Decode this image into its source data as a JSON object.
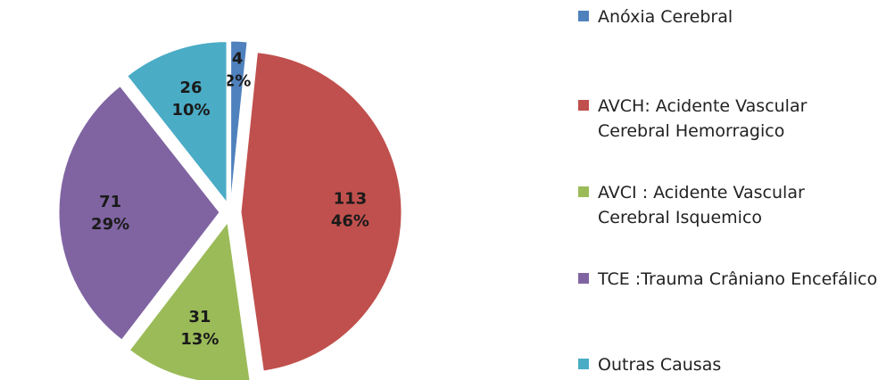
{
  "chart_data": {
    "type": "pie",
    "categories": [
      "Anóxia Cerebral",
      "AVCH: Acidente Vascular Cerebral Hemorragico",
      "AVCI : Acidente Vascular Cerebral Isquemico",
      "TCE :Trauma Crâniano Encefálico",
      "Outras Causas"
    ],
    "values": [
      4,
      113,
      31,
      71,
      26
    ],
    "percent_labels": [
      "2%",
      "46%",
      "13%",
      "29%",
      "10%"
    ],
    "colors": [
      "#4f81bd",
      "#c0504d",
      "#9bbb59",
      "#8064a2",
      "#4bacc6"
    ],
    "legend": "right"
  }
}
